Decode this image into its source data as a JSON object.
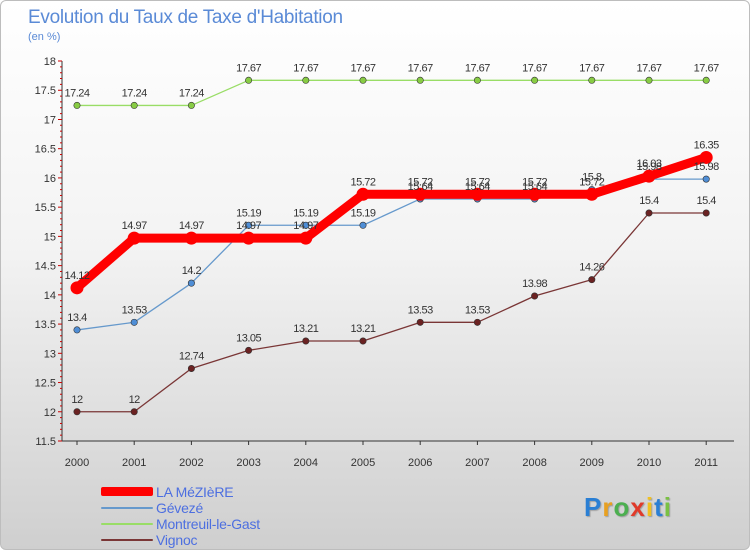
{
  "chart_data": {
    "type": "line",
    "title": "Evolution du Taux de Taxe d'Habitation",
    "subtitle": "(en %)",
    "categories": [
      "2000",
      "2001",
      "2002",
      "2003",
      "2004",
      "2005",
      "2006",
      "2007",
      "2008",
      "2009",
      "2010",
      "2011"
    ],
    "ylim": [
      11.5,
      18
    ],
    "yticks": [
      "11.5",
      "12",
      "12.5",
      "13",
      "13.5",
      "14",
      "14.5",
      "15",
      "15.5",
      "16",
      "16.5",
      "17",
      "17.5",
      "18"
    ],
    "grid": false,
    "legend_position": "bottom-left",
    "series": [
      {
        "name": "LA MéZIèRE",
        "color": "#ff0000",
        "marker": "#ff0000",
        "values": [
          14.12,
          14.97,
          14.97,
          14.97,
          14.97,
          15.72,
          15.72,
          15.72,
          15.72,
          15.72,
          16.03,
          16.35
        ],
        "labels": [
          "14.12",
          "14.97",
          "14.97",
          "14.97",
          "14.97",
          "15.72",
          "15.72",
          "15.72",
          "15.72",
          "15.72",
          "16.03",
          "16.35"
        ]
      },
      {
        "name": "Gévezé",
        "color": "#6699cc",
        "marker": "#4f8ed6",
        "values": [
          13.4,
          13.53,
          14.2,
          15.19,
          15.19,
          15.19,
          15.64,
          15.64,
          15.64,
          15.8,
          15.98,
          15.98
        ],
        "labels": [
          "13.4",
          "13.53",
          "14.2",
          "15.19",
          "15.19",
          "15.19",
          "15.64",
          "15.64",
          "15.64",
          "15.8",
          "15.98",
          "15.98"
        ]
      },
      {
        "name": "Montreuil-le-Gast",
        "color": "#99dd66",
        "marker": "#88cc44",
        "values": [
          17.24,
          17.24,
          17.24,
          17.67,
          17.67,
          17.67,
          17.67,
          17.67,
          17.67,
          17.67,
          17.67,
          17.67
        ],
        "labels": [
          "17.24",
          "17.24",
          "17.24",
          "17.67",
          "17.67",
          "17.67",
          "17.67",
          "17.67",
          "17.67",
          "17.67",
          "17.67",
          "17.67"
        ]
      },
      {
        "name": "Vignoc",
        "color": "#7a3636",
        "marker": "#6b2222",
        "values": [
          12,
          12,
          12.74,
          13.05,
          13.21,
          13.21,
          13.53,
          13.53,
          13.98,
          14.26,
          15.4,
          15.4
        ],
        "labels": [
          "12",
          "12",
          "12.74",
          "13.05",
          "13.21",
          "13.21",
          "13.53",
          "13.53",
          "13.98",
          "14.26",
          "15.4",
          "15.4"
        ]
      }
    ]
  },
  "logo": {
    "letters": [
      "P",
      "r",
      "o",
      "x",
      "i",
      "t",
      "i"
    ],
    "colors": [
      "#2a7fd4",
      "#e8a020",
      "#4caf50",
      "#e03a2a",
      "#f0c020",
      "#2a7fd4",
      "#7ac143"
    ]
  }
}
